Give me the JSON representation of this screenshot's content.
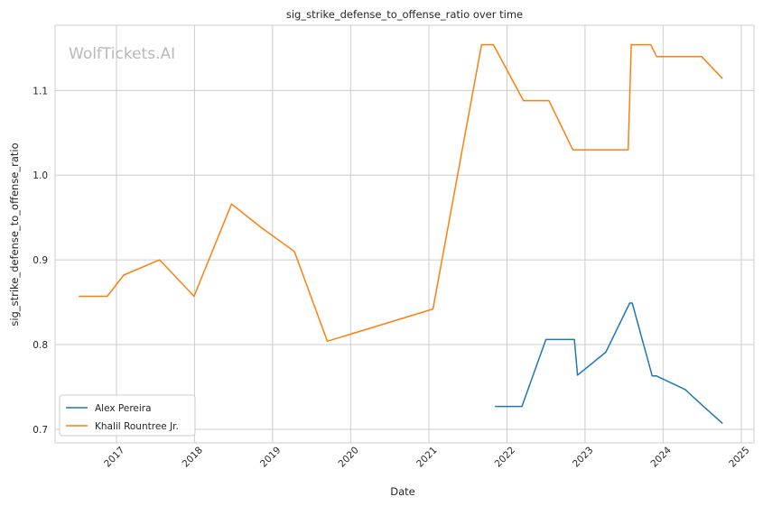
{
  "watermark": "WolfTickets.AI",
  "chart_data": {
    "type": "line",
    "title": "sig_strike_defense_to_offense_ratio over time",
    "xlabel": "Date",
    "ylabel": "sig_strike_defense_to_offense_ratio",
    "x_ticks": [
      "2017",
      "2018",
      "2019",
      "2020",
      "2021",
      "2022",
      "2023",
      "2024",
      "2025"
    ],
    "x_tick_dates": [
      "2017-01-01",
      "2018-01-01",
      "2019-01-01",
      "2020-01-01",
      "2021-01-01",
      "2022-01-01",
      "2023-01-01",
      "2024-01-01",
      "2025-01-01"
    ],
    "y_ticks": [
      "0.7",
      "0.8",
      "0.9",
      "1.0",
      "1.1"
    ],
    "y_tick_values": [
      0.7,
      0.8,
      0.9,
      1.0,
      1.1
    ],
    "xlim": [
      "2016-03-20",
      "2025-03-01"
    ],
    "ylim": [
      0.684,
      1.177
    ],
    "grid": true,
    "legend_position": "lower-left",
    "series": [
      {
        "name": "Alex Pereira",
        "color": "#1f77b4",
        "points": [
          [
            "2021-11-06",
            0.727
          ],
          [
            "2022-03-12",
            0.727
          ],
          [
            "2022-07-02",
            0.806
          ],
          [
            "2022-11-12",
            0.806
          ],
          [
            "2022-11-27",
            0.764
          ],
          [
            "2023-04-08",
            0.791
          ],
          [
            "2023-07-29",
            0.849
          ],
          [
            "2023-08-10",
            0.849
          ],
          [
            "2023-11-11",
            0.763
          ],
          [
            "2023-12-01",
            0.763
          ],
          [
            "2024-04-13",
            0.747
          ],
          [
            "2024-06-29",
            0.729
          ],
          [
            "2024-10-05",
            0.707
          ]
        ]
      },
      {
        "name": "Khalil Rountree Jr.",
        "color": "#ff7f0e",
        "points": [
          [
            "2016-07-08",
            0.857
          ],
          [
            "2016-11-19",
            0.857
          ],
          [
            "2017-02-04",
            0.882
          ],
          [
            "2017-07-22",
            0.9
          ],
          [
            "2017-12-30",
            0.857
          ],
          [
            "2018-06-23",
            0.966
          ],
          [
            "2018-11-10",
            0.938
          ],
          [
            "2019-04-13",
            0.91
          ],
          [
            "2019-09-14",
            0.804
          ],
          [
            "2021-01-20",
            0.842
          ],
          [
            "2021-09-04",
            1.154
          ],
          [
            "2021-10-30",
            1.154
          ],
          [
            "2022-03-19",
            1.088
          ],
          [
            "2022-07-16",
            1.088
          ],
          [
            "2022-11-05",
            1.03
          ],
          [
            "2023-07-22",
            1.03
          ],
          [
            "2023-08-05",
            1.154
          ],
          [
            "2023-11-04",
            1.154
          ],
          [
            "2023-12-02",
            1.14
          ],
          [
            "2024-06-29",
            1.14
          ],
          [
            "2024-10-05",
            1.114
          ]
        ]
      }
    ]
  }
}
